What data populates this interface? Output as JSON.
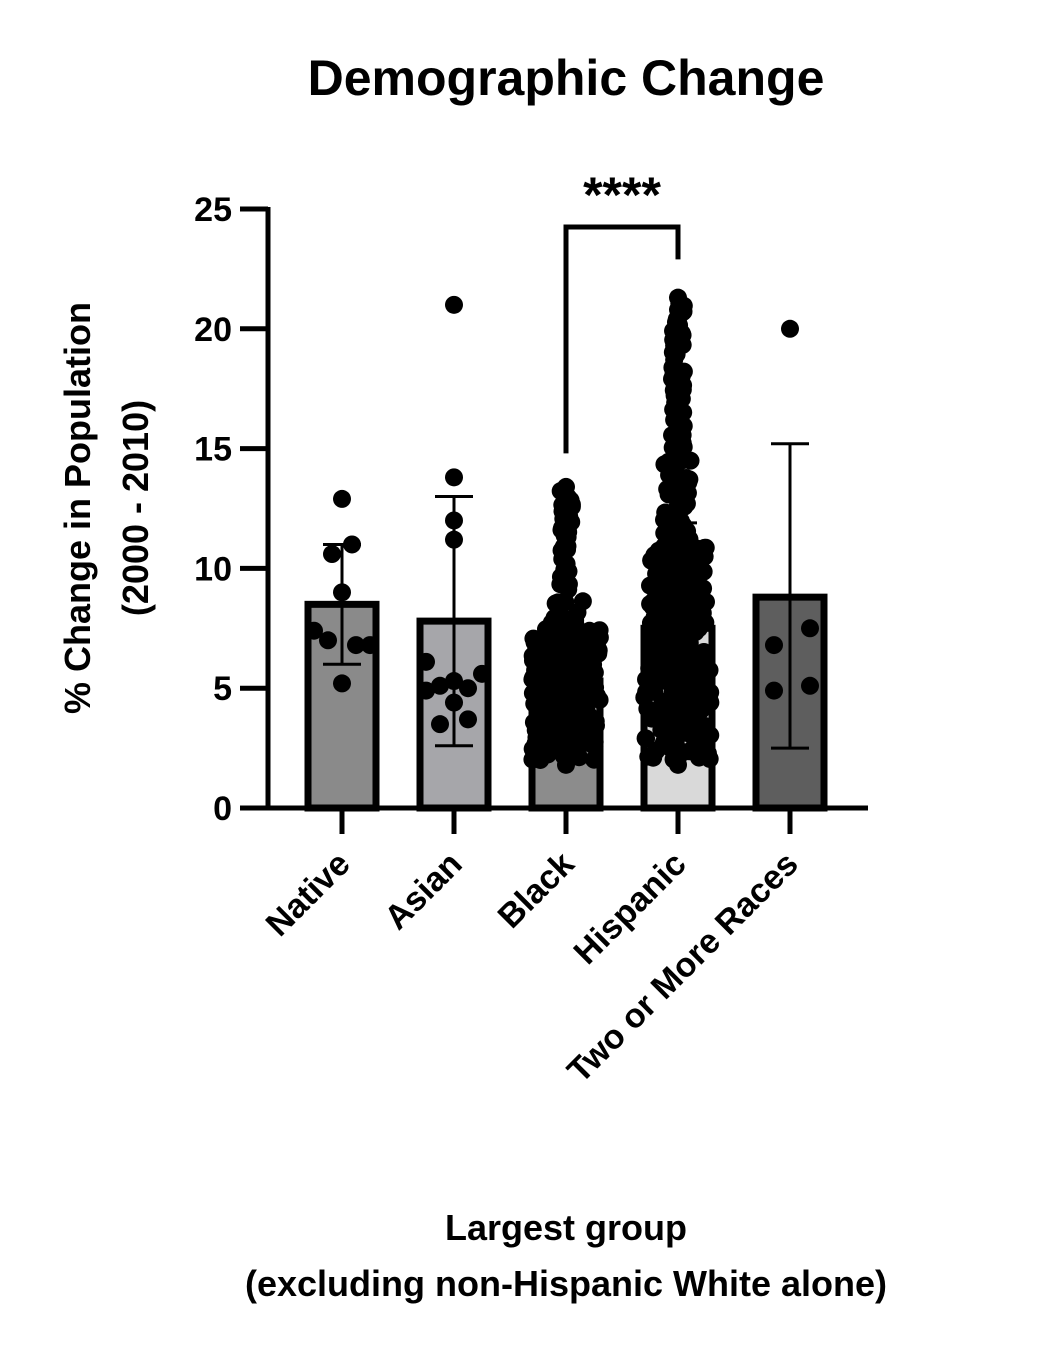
{
  "chart_data": {
    "type": "bar",
    "title": "Demographic Change",
    "ylabel_line1": "% Change in Population",
    "ylabel_line2": "(2000 - 2010)",
    "xlabel_line1": "Largest group",
    "xlabel_line2": "(excluding non-Hispanic White alone)",
    "ylim": [
      0,
      25
    ],
    "yticks": [
      "0",
      "5",
      "10",
      "15",
      "20",
      "25"
    ],
    "categories": [
      "Native",
      "Asian",
      "Black",
      "Hispanic",
      "Two or More Races"
    ],
    "means": [
      8.5,
      7.8,
      5.3,
      7.5,
      8.8
    ],
    "error_low": [
      6.0,
      2.6,
      5.3,
      7.5,
      2.5
    ],
    "error_high": [
      11.0,
      13.0,
      5.3,
      11.9,
      15.2
    ],
    "bar_fill_colors": [
      "#8a8a8a",
      "#a6a6aa",
      "#8c8c8c",
      "#d9d9d9",
      "#5e5e5e"
    ],
    "points": [
      [
        12.9,
        11.0,
        10.6,
        9.0,
        7.4,
        7.0,
        6.8,
        6.8,
        5.2
      ],
      [
        21.0,
        13.8,
        12.0,
        11.2,
        6.1,
        5.6,
        5.3,
        5.1,
        5.0,
        4.9,
        4.4,
        3.7,
        3.5
      ],
      [],
      [],
      [
        20.0,
        7.5,
        6.8,
        5.1,
        4.9
      ]
    ],
    "significance": {
      "from": "Black",
      "to": "Hispanic",
      "label": "****"
    }
  }
}
